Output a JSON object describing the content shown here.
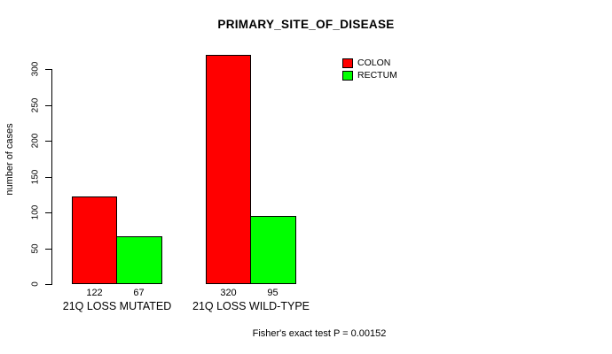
{
  "chart_data": {
    "type": "bar",
    "title": "PRIMARY_SITE_OF_DISEASE",
    "xlabel": "",
    "ylabel": "number of cases",
    "categories": [
      "21Q LOSS MUTATED",
      "21Q LOSS WILD-TYPE"
    ],
    "series": [
      {
        "name": "COLON",
        "color": "#FF0000",
        "values": [
          122,
          320
        ]
      },
      {
        "name": "RECTUM",
        "color": "#00FF00",
        "values": [
          67,
          95
        ]
      }
    ],
    "bar_value_labels": [
      [
        "122",
        "67"
      ],
      [
        "320",
        "95"
      ]
    ],
    "yticks": [
      0,
      50,
      100,
      150,
      200,
      250,
      300
    ],
    "ylim": [
      0,
      320
    ],
    "grid": false,
    "legend_position": "top-right",
    "annotation": "Fisher's exact test P = 0.00152"
  }
}
